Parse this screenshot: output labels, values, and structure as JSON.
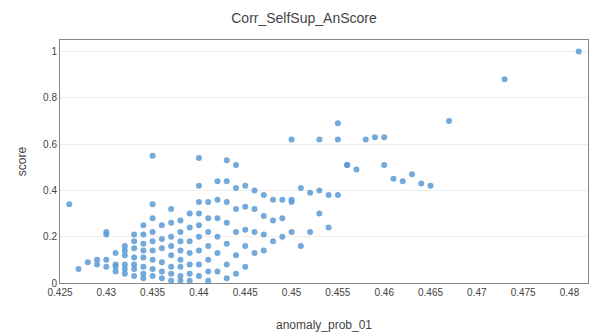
{
  "chart_data": {
    "type": "scatter",
    "title": "Corr_SelfSup_AnScore",
    "x_label": "anomaly_prob_01",
    "y_label": "score",
    "x": [
      0.426,
      0.427,
      0.428,
      0.429,
      0.429,
      0.43,
      0.43,
      0.43,
      0.43,
      0.431,
      0.431,
      0.431,
      0.431,
      0.432,
      0.432,
      0.432,
      0.432,
      0.432,
      0.432,
      0.433,
      0.433,
      0.433,
      0.433,
      0.433,
      0.433,
      0.433,
      0.434,
      0.434,
      0.434,
      0.434,
      0.434,
      0.434,
      0.434,
      0.434,
      0.435,
      0.435,
      0.435,
      0.435,
      0.435,
      0.435,
      0.435,
      0.435,
      0.435,
      0.436,
      0.436,
      0.436,
      0.436,
      0.436,
      0.436,
      0.437,
      0.437,
      0.437,
      0.437,
      0.437,
      0.437,
      0.437,
      0.437,
      0.438,
      0.438,
      0.438,
      0.438,
      0.438,
      0.438,
      0.438,
      0.438,
      0.439,
      0.439,
      0.439,
      0.439,
      0.439,
      0.439,
      0.439,
      0.44,
      0.44,
      0.44,
      0.44,
      0.44,
      0.44,
      0.44,
      0.44,
      0.44,
      0.441,
      0.441,
      0.441,
      0.441,
      0.441,
      0.441,
      0.441,
      0.442,
      0.442,
      0.442,
      0.442,
      0.442,
      0.442,
      0.443,
      0.443,
      0.443,
      0.443,
      0.443,
      0.443,
      0.443,
      0.444,
      0.444,
      0.444,
      0.444,
      0.444,
      0.444,
      0.445,
      0.445,
      0.445,
      0.445,
      0.445,
      0.446,
      0.446,
      0.446,
      0.446,
      0.447,
      0.447,
      0.447,
      0.447,
      0.448,
      0.448,
      0.448,
      0.449,
      0.449,
      0.449,
      0.45,
      0.45,
      0.45,
      0.45,
      0.451,
      0.451,
      0.452,
      0.452,
      0.453,
      0.453,
      0.453,
      0.454,
      0.454,
      0.455,
      0.455,
      0.455,
      0.456,
      0.456,
      0.457,
      0.458,
      0.459,
      0.46,
      0.46,
      0.461,
      0.462,
      0.463,
      0.464,
      0.465,
      0.467,
      0.473,
      0.481
    ],
    "values": [
      0.34,
      0.06,
      0.09,
      0.08,
      0.1,
      0.22,
      0.21,
      0.1,
      0.07,
      0.13,
      0.08,
      0.07,
      0.05,
      0.16,
      0.14,
      0.12,
      0.08,
      0.06,
      0.04,
      0.21,
      0.18,
      0.15,
      0.11,
      0.08,
      0.06,
      0.03,
      0.25,
      0.21,
      0.17,
      0.14,
      0.11,
      0.07,
      0.04,
      0.02,
      0.55,
      0.34,
      0.28,
      0.22,
      0.18,
      0.14,
      0.1,
      0.06,
      0.03,
      0.25,
      0.19,
      0.15,
      0.09,
      0.05,
      0.02,
      0.32,
      0.26,
      0.2,
      0.16,
      0.12,
      0.07,
      0.04,
      0.01,
      0.27,
      0.22,
      0.18,
      0.14,
      0.1,
      0.07,
      0.03,
      0.01,
      0.3,
      0.24,
      0.18,
      0.13,
      0.08,
      0.04,
      0.01,
      0.54,
      0.42,
      0.35,
      0.3,
      0.25,
      0.2,
      0.14,
      0.08,
      0.03,
      0.35,
      0.28,
      0.22,
      0.16,
      0.1,
      0.05,
      0.01,
      0.44,
      0.36,
      0.28,
      0.2,
      0.13,
      0.05,
      0.53,
      0.44,
      0.35,
      0.26,
      0.17,
      0.08,
      0.02,
      0.51,
      0.41,
      0.32,
      0.22,
      0.12,
      0.04,
      0.42,
      0.33,
      0.23,
      0.16,
      0.07,
      0.4,
      0.32,
      0.22,
      0.13,
      0.38,
      0.29,
      0.21,
      0.14,
      0.36,
      0.27,
      0.18,
      0.36,
      0.28,
      0.2,
      0.62,
      0.35,
      0.36,
      0.22,
      0.41,
      0.16,
      0.39,
      0.22,
      0.4,
      0.62,
      0.3,
      0.38,
      0.24,
      0.69,
      0.62,
      0.38,
      0.51,
      0.51,
      0.49,
      0.62,
      0.63,
      0.51,
      0.63,
      0.45,
      0.44,
      0.47,
      0.43,
      0.42,
      0.7,
      0.88,
      1.0
    ],
    "color": "#5b9bd5",
    "xlim": [
      0.425,
      0.482
    ],
    "ylim": [
      0.0,
      1.05
    ],
    "xticks": [
      0.425,
      0.43,
      0.435,
      0.44,
      0.445,
      0.45,
      0.455,
      0.46,
      0.465,
      0.47,
      0.475,
      0.48
    ],
    "yticks": [
      0,
      0.2,
      0.4,
      0.6,
      0.8,
      1
    ],
    "grid": "y"
  }
}
